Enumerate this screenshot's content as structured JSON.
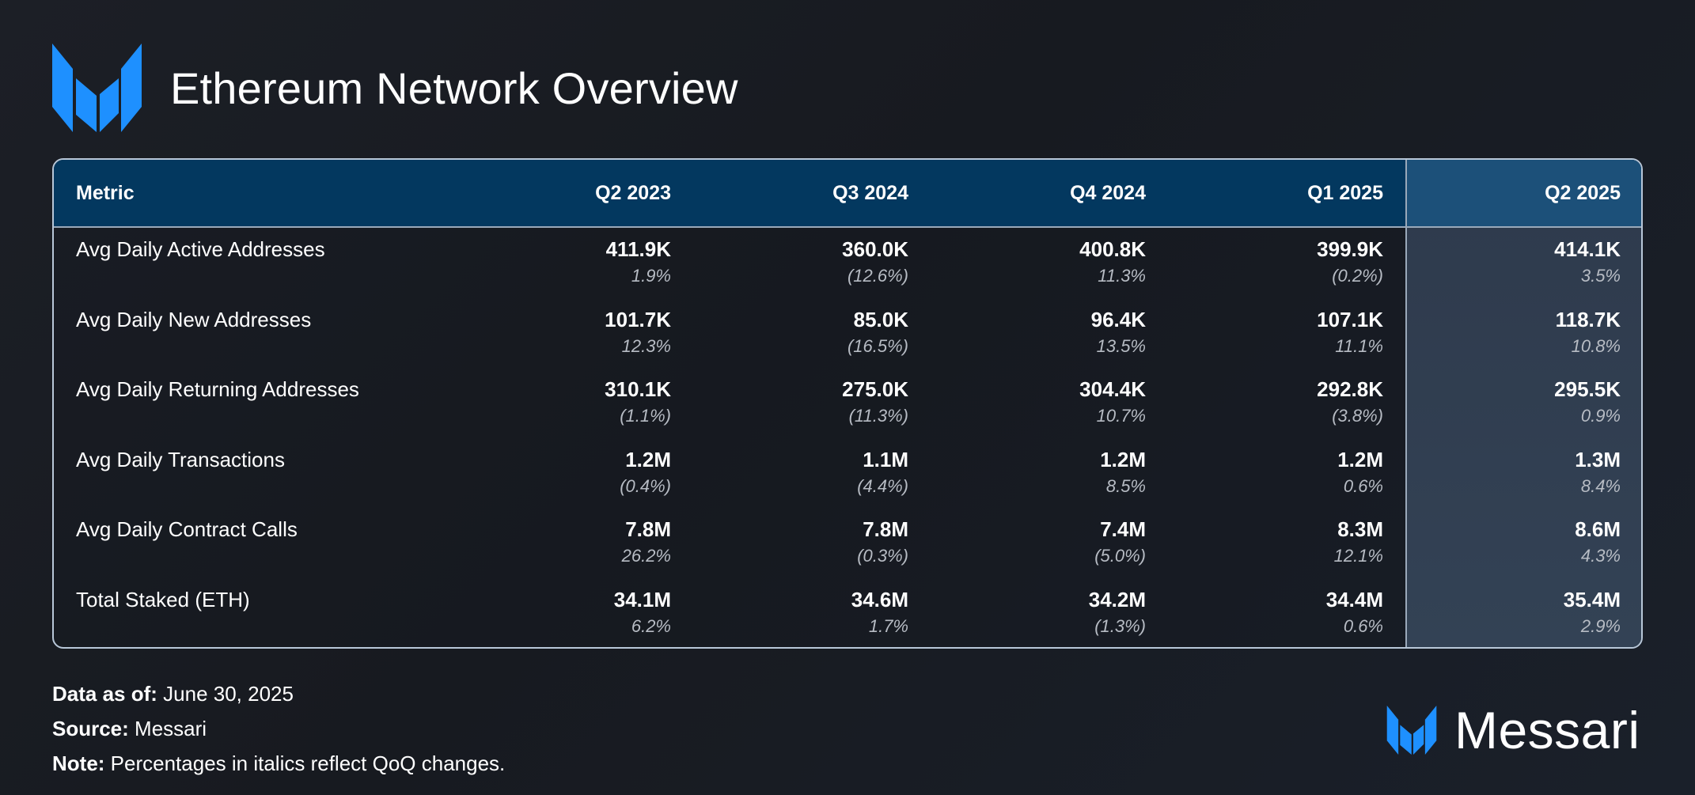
{
  "title": "Ethereum Network Overview",
  "colors": {
    "accent": "#1e90ff",
    "header_bg": "#03385f",
    "header_last_bg": "#1c5079",
    "last_col_bg": "#2f3c4e",
    "change_text": "#b7bcc4"
  },
  "icons": {
    "logo": "messari-logo-icon",
    "brand": "messari-logo-icon"
  },
  "chart_data": {
    "type": "table",
    "columns": [
      "Metric",
      "Q2 2023",
      "Q3 2024",
      "Q4 2024",
      "Q1 2025",
      "Q2 2025"
    ],
    "rows": [
      {
        "metric": "Avg Daily Active Addresses",
        "values": [
          "411.9K",
          "360.0K",
          "400.8K",
          "399.9K",
          "414.1K"
        ],
        "changes": [
          "1.9%",
          "(12.6%)",
          "11.3%",
          "(0.2%)",
          "3.5%"
        ]
      },
      {
        "metric": "Avg Daily New Addresses",
        "values": [
          "101.7K",
          "85.0K",
          "96.4K",
          "107.1K",
          "118.7K"
        ],
        "changes": [
          "12.3%",
          "(16.5%)",
          "13.5%",
          "11.1%",
          "10.8%"
        ]
      },
      {
        "metric": "Avg Daily Returning Addresses",
        "values": [
          "310.1K",
          "275.0K",
          "304.4K",
          "292.8K",
          "295.5K"
        ],
        "changes": [
          "(1.1%)",
          "(11.3%)",
          "10.7%",
          "(3.8%)",
          "0.9%"
        ]
      },
      {
        "metric": "Avg Daily Transactions",
        "values": [
          "1.2M",
          "1.1M",
          "1.2M",
          "1.2M",
          "1.3M"
        ],
        "changes": [
          "(0.4%)",
          "(4.4%)",
          "8.5%",
          "0.6%",
          "8.4%"
        ]
      },
      {
        "metric": "Avg Daily Contract Calls",
        "values": [
          "7.8M",
          "7.8M",
          "7.4M",
          "8.3M",
          "8.6M"
        ],
        "changes": [
          "26.2%",
          "(0.3%)",
          "(5.0%)",
          "12.1%",
          "4.3%"
        ]
      },
      {
        "metric": "Total Staked (ETH)",
        "values": [
          "34.1M",
          "34.6M",
          "34.2M",
          "34.4M",
          "35.4M"
        ],
        "changes": [
          "6.2%",
          "1.7%",
          "(1.3%)",
          "0.6%",
          "2.9%"
        ]
      }
    ]
  },
  "footer": {
    "date_label": "Data as of:",
    "date_value": "June 30, 2025",
    "source_label": "Source:",
    "source_value": "Messari",
    "note_label": "Note:",
    "note_value": "Percentages in italics reflect QoQ changes."
  },
  "brand": {
    "name": "Messari"
  }
}
